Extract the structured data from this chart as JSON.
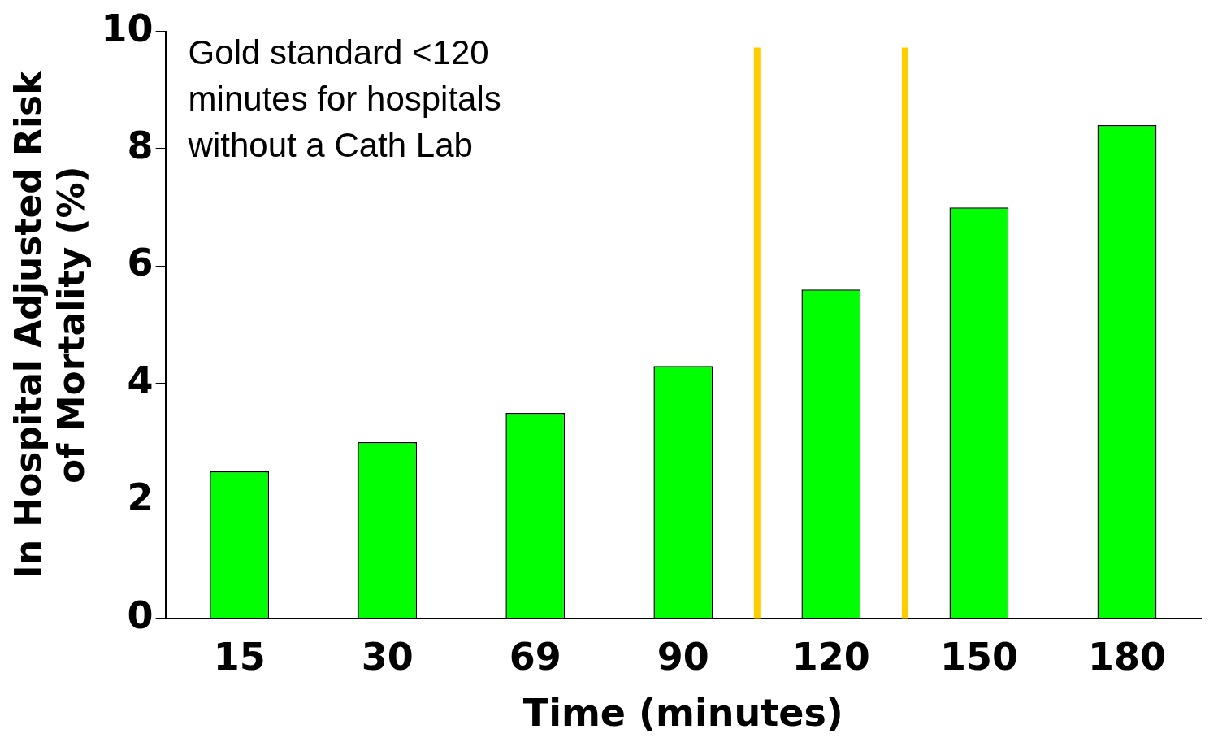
{
  "chart_data": {
    "type": "bar",
    "xlabel": "Time (minutes)",
    "ylabel": "In Hospital Adjusted Risk\nof Mortality (%)",
    "categories": [
      "15",
      "30",
      "69",
      "90",
      "120",
      "150",
      "180"
    ],
    "values": [
      2.5,
      3.0,
      3.5,
      4.3,
      5.6,
      7.0,
      8.4
    ],
    "color": "#00ff00",
    "ylim": [
      0,
      10
    ],
    "yticks": [
      0,
      2,
      4,
      6,
      8,
      10
    ],
    "grid": false,
    "legend": false,
    "annotations": [
      "Gold standard <120\nminutes for hospitals\nwithout a Cath Lab"
    ]
  }
}
